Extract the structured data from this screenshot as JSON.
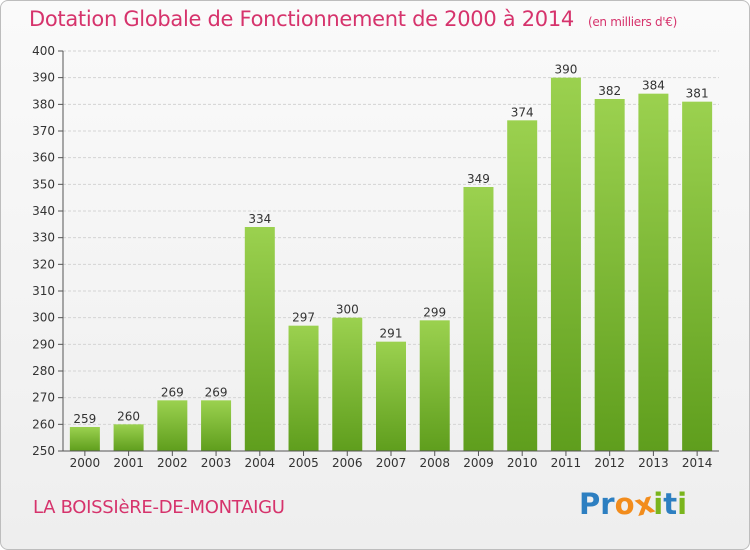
{
  "header": {
    "title": "Dotation Globale de Fonctionnement de 2000 à 2014",
    "unit": "(en milliers d'€)"
  },
  "footer": {
    "location": "LA BOISSIèRE-DE-MONTAIGU",
    "logo": "Proxiti"
  },
  "colors": {
    "title": "#d6336c",
    "bar_top": "#9bd14f",
    "bar_bottom": "#5f9e1d",
    "logo_letters": [
      "#2d7fc1",
      "#2d7fc1",
      "#f28c1c",
      "#d6336c",
      "#7ab51d",
      "#2d7fc1",
      "#7ab51d"
    ]
  },
  "chart_data": {
    "type": "bar",
    "title": "Dotation Globale de Fonctionnement de 2000 à 2014",
    "xlabel": "",
    "ylabel": "",
    "ylim": [
      250,
      400
    ],
    "yticks": [
      250,
      260,
      270,
      280,
      290,
      300,
      310,
      320,
      330,
      340,
      350,
      360,
      370,
      380,
      390,
      400
    ],
    "grid": true,
    "categories": [
      "2000",
      "2001",
      "2002",
      "2003",
      "2004",
      "2005",
      "2006",
      "2007",
      "2008",
      "2009",
      "2010",
      "2011",
      "2012",
      "2013",
      "2014"
    ],
    "values": [
      259,
      260,
      269,
      269,
      334,
      297,
      300,
      291,
      299,
      349,
      374,
      390,
      382,
      384,
      381
    ]
  }
}
